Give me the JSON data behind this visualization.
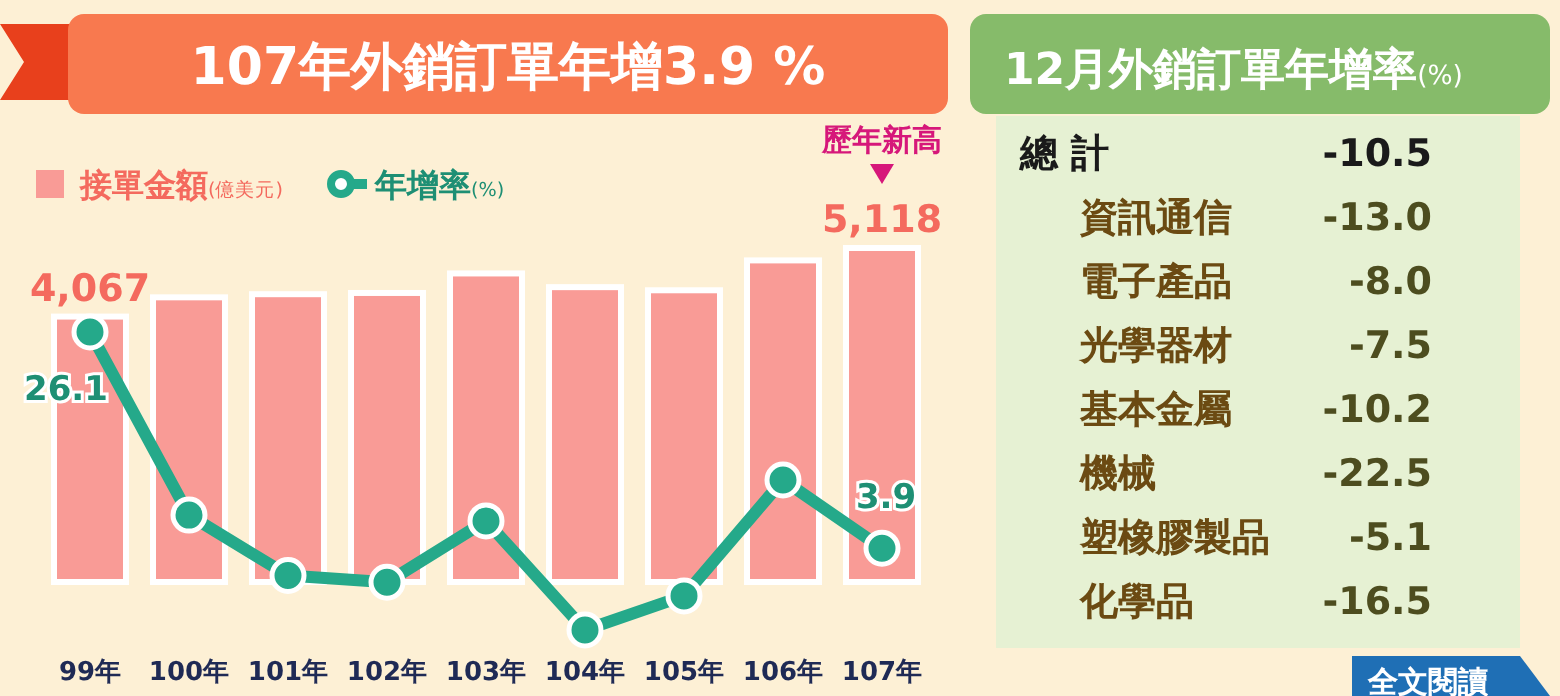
{
  "chart_data": [
    {
      "type": "bar",
      "title": "107年外銷訂單年增3.9 %",
      "categories": [
        "99年",
        "100年",
        "101年",
        "102年",
        "103年",
        "104年",
        "105年",
        "106年",
        "107年"
      ],
      "tick_labels": "x",
      "legend": "top left",
      "marker": "circle",
      "series": [
        {
          "name": "接單金額(億美元)",
          "type": "bar",
          "color": "#f99b96",
          "values": [
            4067,
            4362,
            4410,
            4429,
            4728,
            4518,
            4470,
            4928,
            5118
          ],
          "value_labels": [
            "4,067",
            null,
            null,
            null,
            null,
            null,
            null,
            null,
            "5,118"
          ]
        },
        {
          "name": "年增率(%)",
          "type": "line",
          "axis": "y2",
          "color": "#25a98a",
          "values": [
            26.1,
            7.3,
            1.1,
            0.4,
            6.7,
            -4.5,
            -1.0,
            10.9,
            3.9
          ],
          "value_labels": [
            "26.1",
            null,
            null,
            null,
            null,
            null,
            null,
            null,
            "3.9"
          ]
        }
      ],
      "annotations": [
        "歷年新高"
      ]
    },
    {
      "type": "other",
      "title": "12月外銷訂單年增率(%)",
      "categories": [
        "總 計",
        "資訊通信",
        "電子產品",
        "光學器材",
        "基本金屬",
        "機械",
        "塑橡膠製品",
        "化學品"
      ],
      "value_labels": [
        "-10.5",
        "-13.0",
        "-8.0",
        "-7.5",
        "-10.2",
        "-22.5",
        "-5.1",
        "-16.5"
      ],
      "annotations": [
        "全文閱讀"
      ]
    }
  ]
}
